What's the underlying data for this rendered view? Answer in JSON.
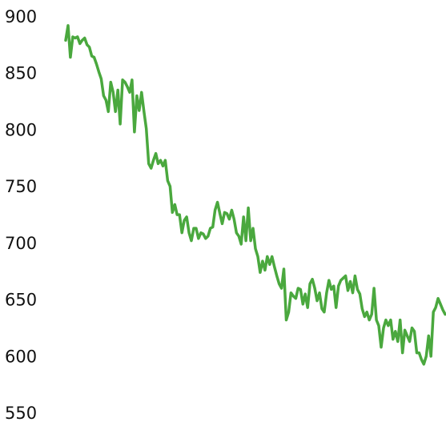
{
  "chart_data": {
    "type": "line",
    "color": "#4aa83e",
    "ylim": [
      550,
      900
    ],
    "yticks": [
      550,
      600,
      650,
      700,
      750,
      800,
      850,
      900
    ],
    "grid": false,
    "values": [
      880,
      893,
      865,
      883,
      882,
      883,
      877,
      880,
      882,
      876,
      874,
      866,
      865,
      859,
      852,
      846,
      831,
      827,
      817,
      843,
      834,
      817,
      836,
      806,
      845,
      843,
      839,
      834,
      845,
      799,
      831,
      818,
      834,
      817,
      802,
      771,
      767,
      774,
      780,
      771,
      774,
      769,
      774,
      756,
      751,
      728,
      735,
      726,
      726,
      710,
      721,
      724,
      710,
      703,
      714,
      714,
      705,
      710,
      709,
      705,
      707,
      714,
      715,
      730,
      737,
      727,
      718,
      728,
      727,
      722,
      730,
      722,
      710,
      707,
      700,
      724,
      703,
      732,
      703,
      714,
      696,
      689,
      675,
      685,
      677,
      689,
      682,
      689,
      680,
      672,
      665,
      661,
      678,
      633,
      640,
      657,
      654,
      652,
      661,
      660,
      647,
      656,
      644,
      665,
      669,
      661,
      650,
      657,
      643,
      640,
      657,
      668,
      660,
      663,
      644,
      663,
      668,
      670,
      672,
      659,
      667,
      657,
      672,
      660,
      656,
      643,
      636,
      640,
      633,
      638,
      661,
      633,
      628,
      609,
      626,
      633,
      628,
      633,
      616,
      623,
      614,
      633,
      604,
      624,
      619,
      614,
      626,
      623,
      604,
      604,
      598,
      594,
      601,
      619,
      601,
      640,
      644,
      652,
      647,
      642,
      638
    ]
  }
}
